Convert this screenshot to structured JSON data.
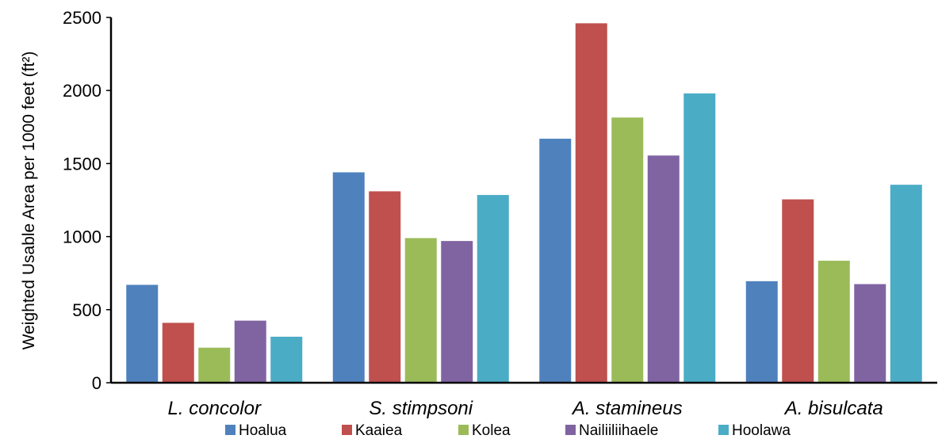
{
  "chart_data": {
    "type": "bar",
    "categories": [
      "L. concolor",
      "S. stimpsoni",
      "A. stamineus",
      "A. bisulcata"
    ],
    "series": [
      {
        "name": "Hoalua",
        "color": "#4F81BD",
        "values": [
          670,
          1440,
          1670,
          695
        ]
      },
      {
        "name": "Kaaiea",
        "color": "#C0504D",
        "values": [
          410,
          1310,
          2460,
          1255
        ]
      },
      {
        "name": "Kolea",
        "color": "#9BBB59",
        "values": [
          240,
          990,
          1815,
          835
        ]
      },
      {
        "name": "Nailiiliihaele",
        "color": "#8064A2",
        "values": [
          425,
          970,
          1555,
          675
        ]
      },
      {
        "name": "Hoolawa",
        "color": "#4BACC6",
        "values": [
          315,
          1285,
          1980,
          1355
        ]
      }
    ],
    "ylabel": "Weighted Usable Area per 1000 feet (ft²)",
    "xlabel": "",
    "ylim": [
      0,
      2500
    ],
    "yticks": [
      0,
      500,
      1000,
      1500,
      2000,
      2500
    ],
    "grid": false,
    "legend_position": "bottom"
  }
}
